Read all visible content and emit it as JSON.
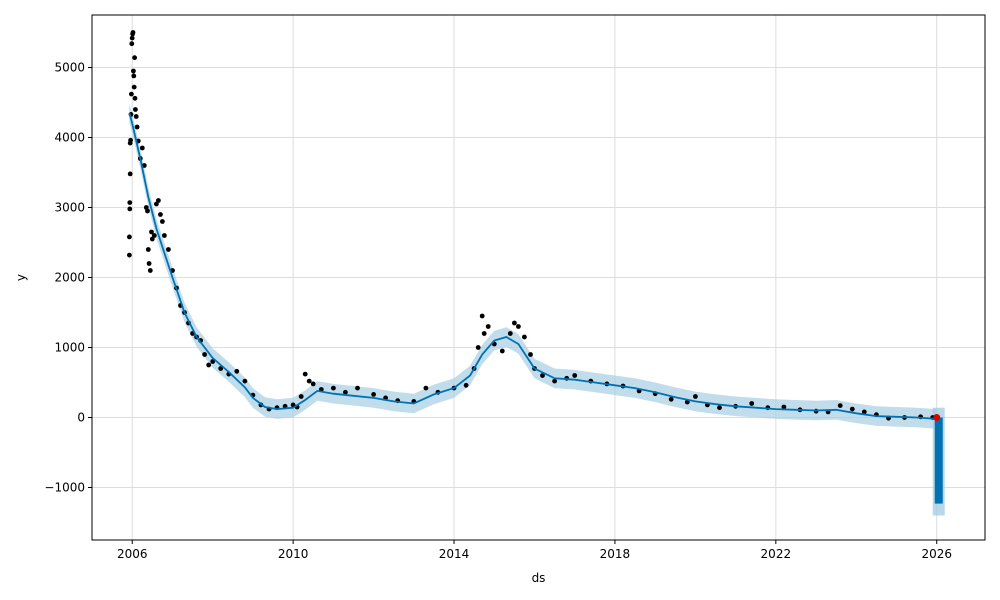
{
  "chart_data": {
    "type": "scatter",
    "title": "",
    "xlabel": "ds",
    "ylabel": "y",
    "xlim": [
      2005.0,
      2027.2
    ],
    "ylim": [
      -1750,
      5750
    ],
    "x_ticks": [
      2006,
      2010,
      2014,
      2018,
      2022,
      2026
    ],
    "x_tick_labels": [
      "2006",
      "2010",
      "2014",
      "2018",
      "2022",
      "2026"
    ],
    "y_ticks": [
      -1000,
      0,
      1000,
      2000,
      3000,
      4000,
      5000
    ],
    "y_tick_labels": [
      "−1000",
      "0",
      "1000",
      "2000",
      "3000",
      "4000",
      "5000"
    ],
    "grid": true,
    "legend": "none",
    "colors": {
      "observed": "#000000",
      "forecast_line": "#0072B2",
      "uncertainty_band": "#a6cee3",
      "last_point": "#e00000"
    },
    "observed_points": [
      [
        2005.93,
        2320
      ],
      [
        2005.93,
        2580
      ],
      [
        2005.94,
        2980
      ],
      [
        2005.94,
        3070
      ],
      [
        2005.95,
        3480
      ],
      [
        2005.95,
        3920
      ],
      [
        2005.96,
        3960
      ],
      [
        2005.97,
        4330
      ],
      [
        2005.98,
        4620
      ],
      [
        2005.99,
        5340
      ],
      [
        2006.0,
        5420
      ],
      [
        2006.01,
        5480
      ],
      [
        2006.02,
        5500
      ],
      [
        2006.03,
        4950
      ],
      [
        2006.04,
        4880
      ],
      [
        2006.05,
        4720
      ],
      [
        2006.06,
        5140
      ],
      [
        2006.07,
        4560
      ],
      [
        2006.08,
        4400
      ],
      [
        2006.1,
        4300
      ],
      [
        2006.12,
        4150
      ],
      [
        2006.15,
        3950
      ],
      [
        2006.2,
        3700
      ],
      [
        2006.25,
        3850
      ],
      [
        2006.3,
        3600
      ],
      [
        2006.35,
        3000
      ],
      [
        2006.38,
        2950
      ],
      [
        2006.4,
        2400
      ],
      [
        2006.42,
        2200
      ],
      [
        2006.45,
        2100
      ],
      [
        2006.48,
        2650
      ],
      [
        2006.5,
        2550
      ],
      [
        2006.55,
        2600
      ],
      [
        2006.6,
        3050
      ],
      [
        2006.65,
        3100
      ],
      [
        2006.7,
        2900
      ],
      [
        2006.75,
        2800
      ],
      [
        2006.8,
        2600
      ],
      [
        2006.9,
        2400
      ],
      [
        2007.0,
        2100
      ],
      [
        2007.1,
        1850
      ],
      [
        2007.2,
        1600
      ],
      [
        2007.3,
        1500
      ],
      [
        2007.4,
        1350
      ],
      [
        2007.5,
        1200
      ],
      [
        2007.6,
        1150
      ],
      [
        2007.7,
        1100
      ],
      [
        2007.8,
        900
      ],
      [
        2007.9,
        750
      ],
      [
        2008.0,
        800
      ],
      [
        2008.2,
        700
      ],
      [
        2008.4,
        620
      ],
      [
        2008.6,
        660
      ],
      [
        2008.8,
        520
      ],
      [
        2009.0,
        320
      ],
      [
        2009.2,
        180
      ],
      [
        2009.4,
        120
      ],
      [
        2009.6,
        140
      ],
      [
        2009.8,
        160
      ],
      [
        2010.0,
        180
      ],
      [
        2010.1,
        150
      ],
      [
        2010.2,
        300
      ],
      [
        2010.3,
        620
      ],
      [
        2010.4,
        520
      ],
      [
        2010.5,
        480
      ],
      [
        2010.7,
        400
      ],
      [
        2011.0,
        420
      ],
      [
        2011.3,
        360
      ],
      [
        2011.6,
        420
      ],
      [
        2012.0,
        330
      ],
      [
        2012.3,
        280
      ],
      [
        2012.6,
        240
      ],
      [
        2013.0,
        230
      ],
      [
        2013.3,
        420
      ],
      [
        2013.6,
        360
      ],
      [
        2014.0,
        420
      ],
      [
        2014.3,
        460
      ],
      [
        2014.5,
        700
      ],
      [
        2014.6,
        1000
      ],
      [
        2014.7,
        1450
      ],
      [
        2014.75,
        1200
      ],
      [
        2014.85,
        1300
      ],
      [
        2015.0,
        1050
      ],
      [
        2015.2,
        950
      ],
      [
        2015.4,
        1200
      ],
      [
        2015.5,
        1350
      ],
      [
        2015.6,
        1300
      ],
      [
        2015.75,
        1150
      ],
      [
        2015.9,
        900
      ],
      [
        2016.0,
        700
      ],
      [
        2016.2,
        600
      ],
      [
        2016.5,
        520
      ],
      [
        2016.8,
        560
      ],
      [
        2017.0,
        600
      ],
      [
        2017.4,
        520
      ],
      [
        2017.8,
        480
      ],
      [
        2018.2,
        450
      ],
      [
        2018.6,
        380
      ],
      [
        2019.0,
        340
      ],
      [
        2019.4,
        260
      ],
      [
        2019.8,
        220
      ],
      [
        2020.0,
        300
      ],
      [
        2020.3,
        180
      ],
      [
        2020.6,
        140
      ],
      [
        2021.0,
        160
      ],
      [
        2021.4,
        200
      ],
      [
        2021.8,
        140
      ],
      [
        2022.2,
        150
      ],
      [
        2022.6,
        110
      ],
      [
        2023.0,
        90
      ],
      [
        2023.3,
        80
      ],
      [
        2023.6,
        170
      ],
      [
        2023.9,
        120
      ],
      [
        2024.2,
        80
      ],
      [
        2024.5,
        40
      ],
      [
        2024.8,
        -10
      ],
      [
        2025.2,
        0
      ],
      [
        2025.6,
        10
      ],
      [
        2025.9,
        0
      ]
    ],
    "forecast": {
      "x": [
        2005.93,
        2006.0,
        2006.2,
        2006.4,
        2006.6,
        2006.8,
        2007.0,
        2007.3,
        2007.6,
        2008.0,
        2008.4,
        2008.8,
        2009.0,
        2009.3,
        2009.6,
        2010.0,
        2010.3,
        2010.6,
        2011.0,
        2011.5,
        2012.0,
        2012.5,
        2013.0,
        2013.5,
        2014.0,
        2014.4,
        2014.7,
        2015.0,
        2015.3,
        2015.6,
        2016.0,
        2016.5,
        2017.0,
        2017.5,
        2018.0,
        2018.5,
        2019.0,
        2019.5,
        2020.0,
        2020.5,
        2021.0,
        2021.5,
        2022.0,
        2022.5,
        2023.0,
        2023.5,
        2024.0,
        2024.5,
        2025.0,
        2025.5,
        2026.0
      ],
      "yhat": [
        4350,
        4200,
        3700,
        3150,
        2700,
        2350,
        2000,
        1500,
        1150,
        850,
        650,
        430,
        280,
        150,
        120,
        140,
        250,
        380,
        340,
        310,
        280,
        230,
        200,
        330,
        420,
        600,
        900,
        1100,
        1150,
        1050,
        700,
        560,
        540,
        500,
        460,
        420,
        360,
        290,
        230,
        190,
        160,
        140,
        120,
        110,
        100,
        110,
        60,
        20,
        10,
        0,
        -20
      ]
    },
    "band_halfwidth": 140,
    "forecast_spike": {
      "x": 2026.05,
      "y_top": 0,
      "y_bottom": -1230,
      "band_bottom": -1400
    },
    "last_point": [
      2026.0,
      0
    ]
  }
}
